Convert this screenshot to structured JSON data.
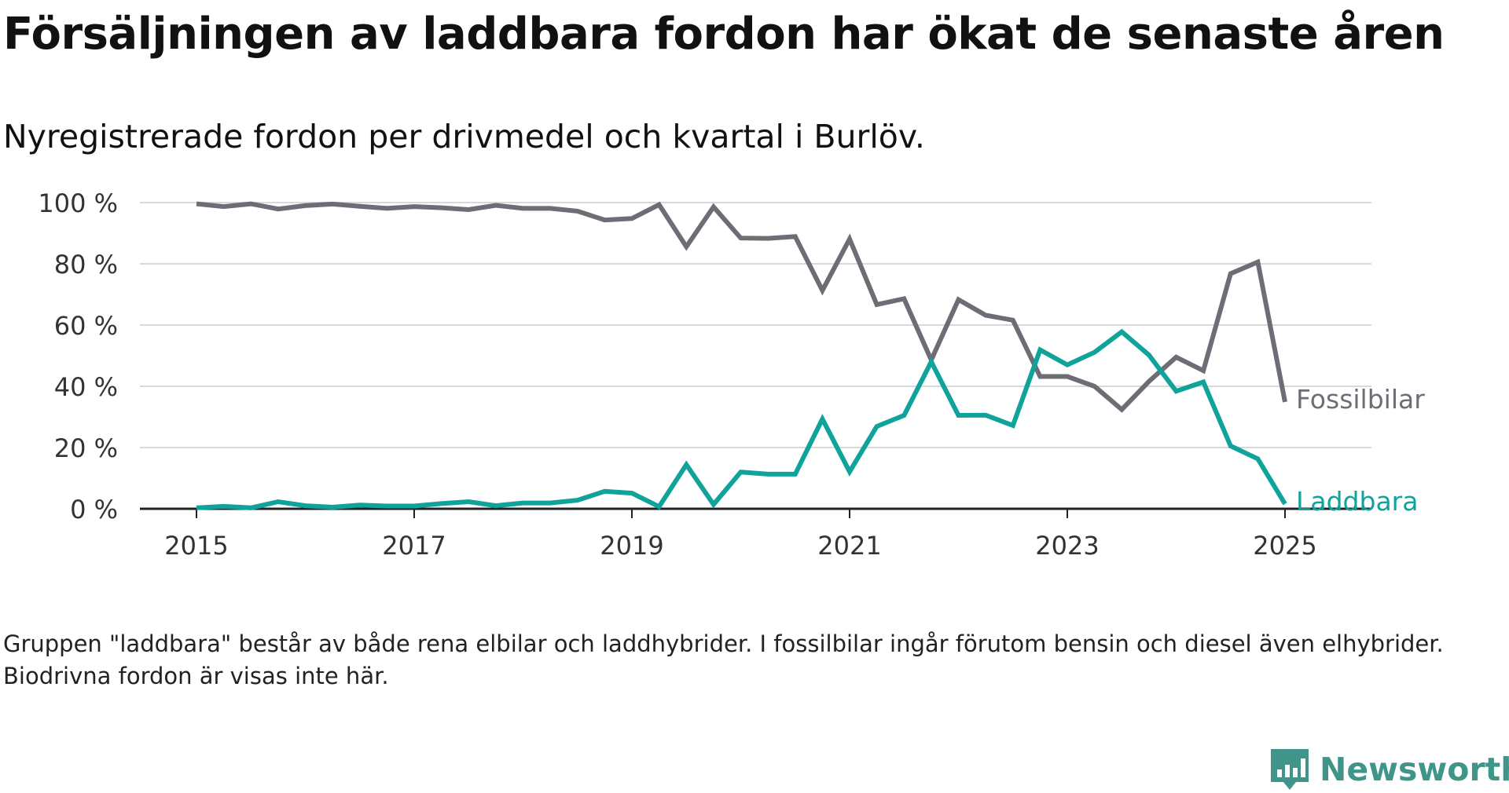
{
  "title": "Försäljningen av laddbara fordon har ökat de senaste åren",
  "subtitle": "Nyregistrerade fordon per drivmedel och kvartal i Burlöv.",
  "footnote": "Gruppen \"laddbara\" består av både rena elbilar och laddhybrider. I fossilbilar ingår förutom bensin och diesel även elhybrider. Biodrivna fordon är visas inte här.",
  "brand": {
    "name": "Newsworthy",
    "color": "#3f9589",
    "icon": "bar-chart-speech-bubble-icon"
  },
  "chart_data": {
    "type": "line",
    "x_start": 2015,
    "x_step": 0.25,
    "ylim": [
      0,
      100
    ],
    "y_ticks": [
      {
        "value": 0,
        "label": "0 %"
      },
      {
        "value": 20,
        "label": "20 %"
      },
      {
        "value": 40,
        "label": "40 %"
      },
      {
        "value": 60,
        "label": "60 %"
      },
      {
        "value": 80,
        "label": "80 %"
      },
      {
        "value": 100,
        "label": "100 %"
      }
    ],
    "x_ticks": [
      {
        "value": 2015,
        "label": "2015"
      },
      {
        "value": 2017,
        "label": "2017"
      },
      {
        "value": 2019,
        "label": "2019"
      },
      {
        "value": 2021,
        "label": "2021"
      },
      {
        "value": 2023,
        "label": "2023"
      },
      {
        "value": 2025,
        "label": "2025"
      }
    ],
    "grid": true,
    "series": [
      {
        "name": "Fossilbilar",
        "color": "#6e6d75",
        "values": [
          99.6,
          98.7,
          99.6,
          97.9,
          99.0,
          99.5,
          98.8,
          98.1,
          98.7,
          98.3,
          97.7,
          99.1,
          98.1,
          98.1,
          97.2,
          94.3,
          94.8,
          99.3,
          85.6,
          98.6,
          88.4,
          88.3,
          88.9,
          71.3,
          88.1,
          66.7,
          68.6,
          48.6,
          68.3,
          63.2,
          61.6,
          43.2,
          43.2,
          40.0,
          32.4,
          41.6,
          49.5,
          45.1,
          76.8,
          80.6,
          34.9
        ]
      },
      {
        "name": "Laddbara",
        "color": "#0fa39b",
        "values": [
          0.3,
          0.8,
          0.3,
          2.3,
          1.0,
          0.5,
          1.2,
          0.9,
          0.9,
          1.7,
          2.3,
          1.0,
          1.9,
          1.9,
          2.8,
          5.7,
          5.1,
          0.7,
          14.4,
          1.4,
          12.0,
          11.3,
          11.3,
          29.3,
          12.1,
          26.9,
          30.5,
          48.0,
          30.5,
          30.6,
          27.2,
          51.9,
          47.0,
          51.1,
          57.8,
          50.2,
          38.4,
          41.4,
          20.5,
          16.3,
          1.6
        ]
      }
    ]
  }
}
